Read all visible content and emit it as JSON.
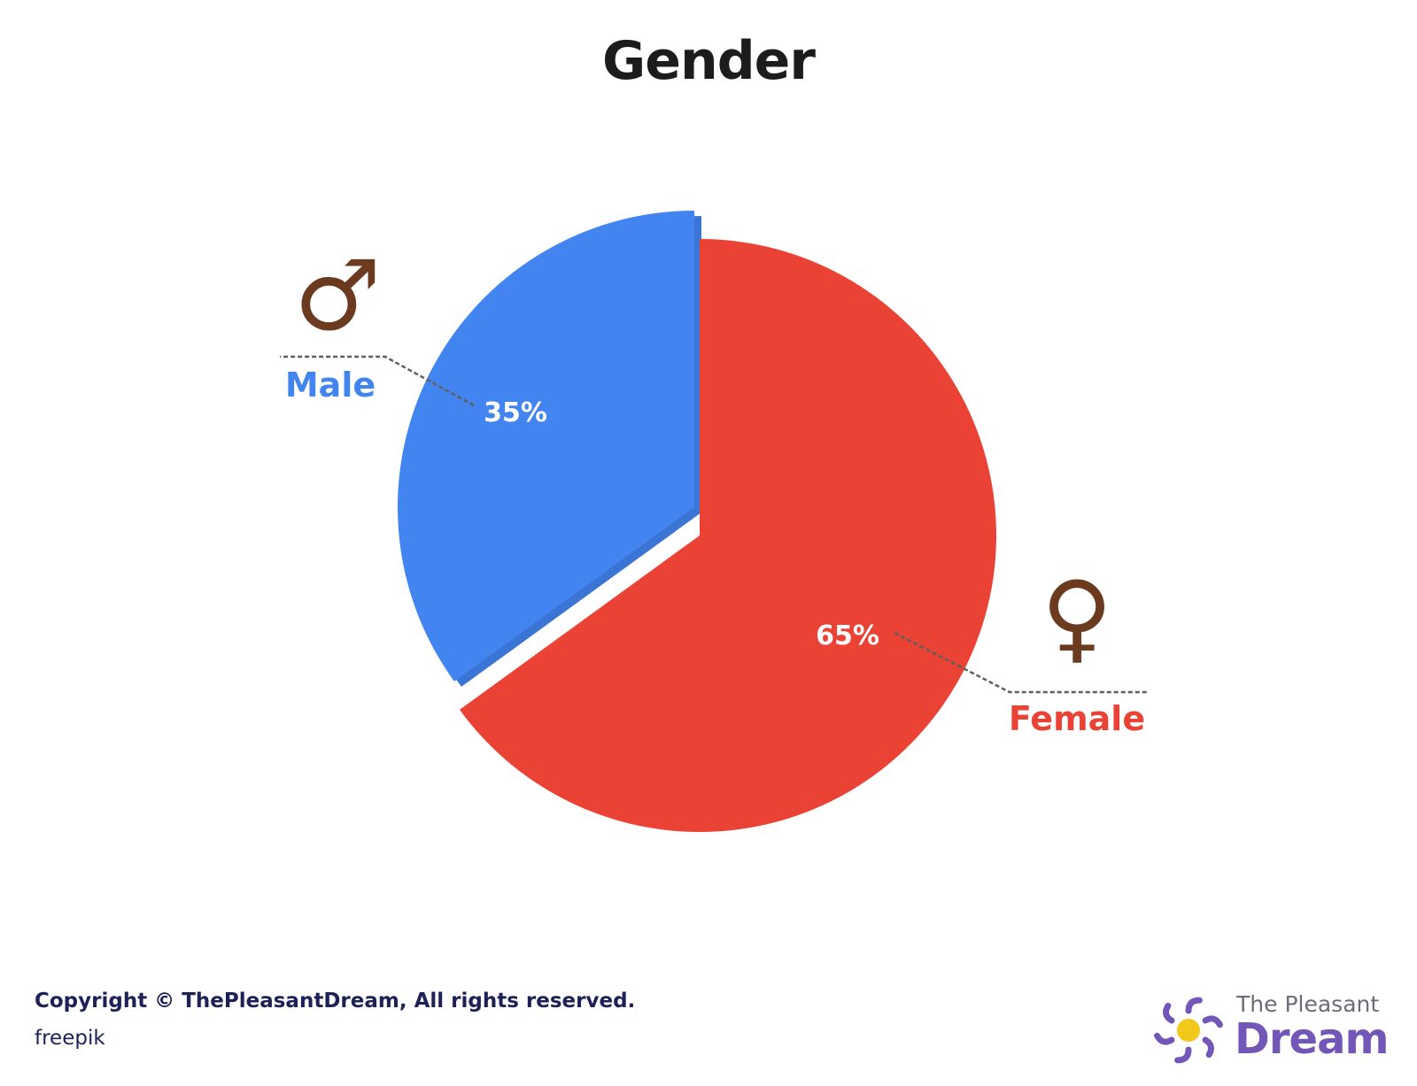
{
  "chart_data": {
    "type": "pie",
    "title": "Gender",
    "slices": [
      {
        "name": "Male",
        "value": 35,
        "label": "35%",
        "color": "#4285f0",
        "symbol": "♂"
      },
      {
        "name": "Female",
        "value": 65,
        "label": "65%",
        "color": "#ea4335",
        "symbol": "♀"
      }
    ],
    "symbol_color": "#6b3a1f",
    "shadow_color": "#3a74d4"
  },
  "footer": {
    "copyright": "Copyright © ThePleasantDream, All rights reserved.",
    "credit": "freepik"
  },
  "brand": {
    "line1": "The Pleasant",
    "line2": "Dream",
    "logo_icon": "sun-burst-icon",
    "accent_color": "#7357b8",
    "sun_color": "#f2c81a"
  }
}
